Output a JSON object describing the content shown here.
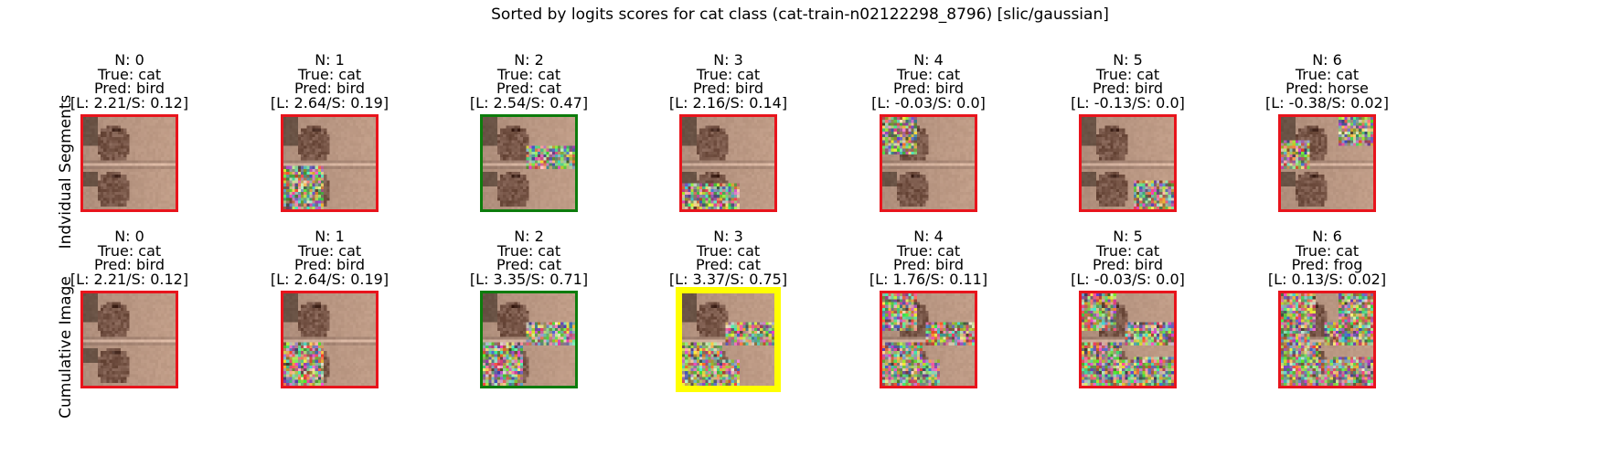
{
  "title": "Sorted by logits scores for cat class (cat-train-n02122298_8796) [slic/gaussian]",
  "colors": {
    "red": "#e8141c",
    "green": "#0c7c0c",
    "yellow": "#ffff00"
  },
  "rows": [
    {
      "label": "Indvidual Segments",
      "panels": [
        {
          "n": "N: 0",
          "true_label": "True: cat",
          "pred": "Pred: bird",
          "scores": "[L: 2.21/S: 0.12]",
          "border": "red",
          "noise": []
        },
        {
          "n": "N: 1",
          "true_label": "True: cat",
          "pred": "Pred: bird",
          "scores": "[L: 2.64/S: 0.19]",
          "border": "red",
          "noise": [
            "bl"
          ]
        },
        {
          "n": "N: 2",
          "true_label": "True: cat",
          "pred": "Pred: cat",
          "scores": "[L: 2.54/S: 0.47]",
          "border": "green",
          "noise": [
            "mr"
          ]
        },
        {
          "n": "N: 3",
          "true_label": "True: cat",
          "pred": "Pred: bird",
          "scores": "[L: 2.16/S: 0.14]",
          "border": "red",
          "noise": [
            "bm"
          ]
        },
        {
          "n": "N: 4",
          "true_label": "True: cat",
          "pred": "Pred: bird",
          "scores": "[L: -0.03/S: 0.0]",
          "border": "red",
          "noise": [
            "tl"
          ]
        },
        {
          "n": "N: 5",
          "true_label": "True: cat",
          "pred": "Pred: bird",
          "scores": "[L: -0.13/S: 0.0]",
          "border": "red",
          "noise": [
            "br"
          ]
        },
        {
          "n": "N: 6",
          "true_label": "True: cat",
          "pred": "Pred: horse",
          "scores": "[L: -0.38/S: 0.02]",
          "border": "red",
          "noise": [
            "tr",
            "ml"
          ]
        }
      ]
    },
    {
      "label": "Cumulative Image",
      "panels": [
        {
          "n": "N: 0",
          "true_label": "True: cat",
          "pred": "Pred: bird",
          "scores": "[L: 2.21/S: 0.12]",
          "border": "red",
          "noise": []
        },
        {
          "n": "N: 1",
          "true_label": "True: cat",
          "pred": "Pred: bird",
          "scores": "[L: 2.64/S: 0.19]",
          "border": "red",
          "noise": [
            "bl"
          ]
        },
        {
          "n": "N: 2",
          "true_label": "True: cat",
          "pred": "Pred: cat",
          "scores": "[L: 3.35/S: 0.71]",
          "border": "green",
          "noise": [
            "bl",
            "mr"
          ]
        },
        {
          "n": "N: 3",
          "true_label": "True: cat",
          "pred": "Pred: cat",
          "scores": "[L: 3.37/S: 0.75]",
          "border": "yellow",
          "noise": [
            "bl",
            "mr",
            "bm"
          ]
        },
        {
          "n": "N: 4",
          "true_label": "True: cat",
          "pred": "Pred: bird",
          "scores": "[L: 1.76/S: 0.11]",
          "border": "red",
          "noise": [
            "bl",
            "mr",
            "bm",
            "tl"
          ]
        },
        {
          "n": "N: 5",
          "true_label": "True: cat",
          "pred": "Pred: bird",
          "scores": "[L: -0.03/S: 0.0]",
          "border": "red",
          "noise": [
            "bl",
            "mr",
            "bm",
            "tl",
            "br"
          ]
        },
        {
          "n": "N: 6",
          "true_label": "True: cat",
          "pred": "Pred: frog",
          "scores": "[L: 0.13/S: 0.02]",
          "border": "red",
          "noise": [
            "bl",
            "mr",
            "bm",
            "tl",
            "br",
            "tr",
            "ml"
          ]
        }
      ]
    }
  ]
}
